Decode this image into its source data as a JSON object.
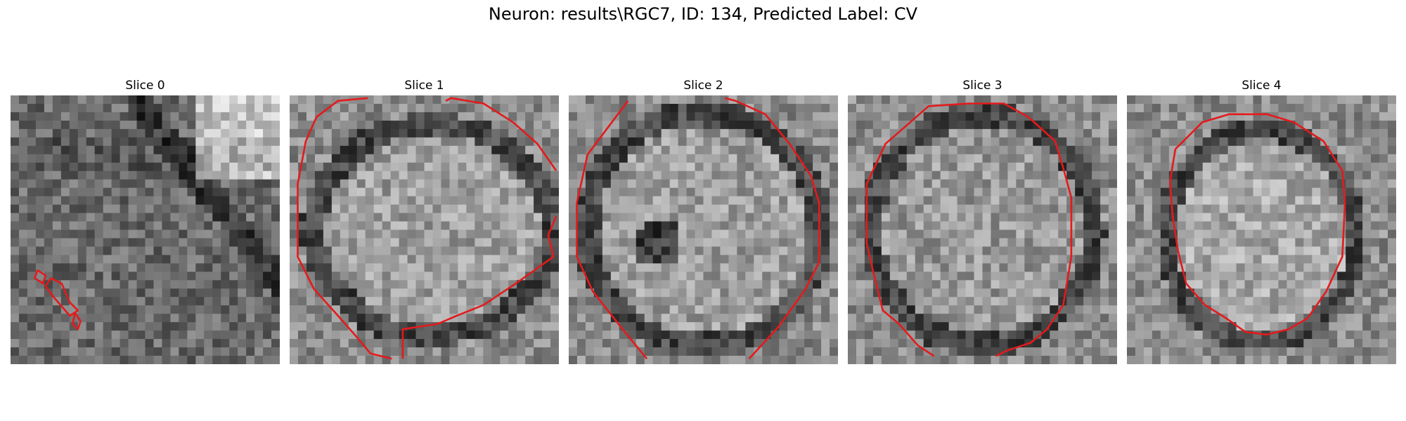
{
  "figure": {
    "title": "Neuron: results\\RGC7, ID: 134, Predicted Label: CV",
    "contour_color": "#e41a1c"
  },
  "panels": [
    {
      "title": "Slice 0"
    },
    {
      "title": "Slice 1"
    },
    {
      "title": "Slice 2"
    },
    {
      "title": "Slice 3"
    },
    {
      "title": "Slice 4"
    }
  ]
}
